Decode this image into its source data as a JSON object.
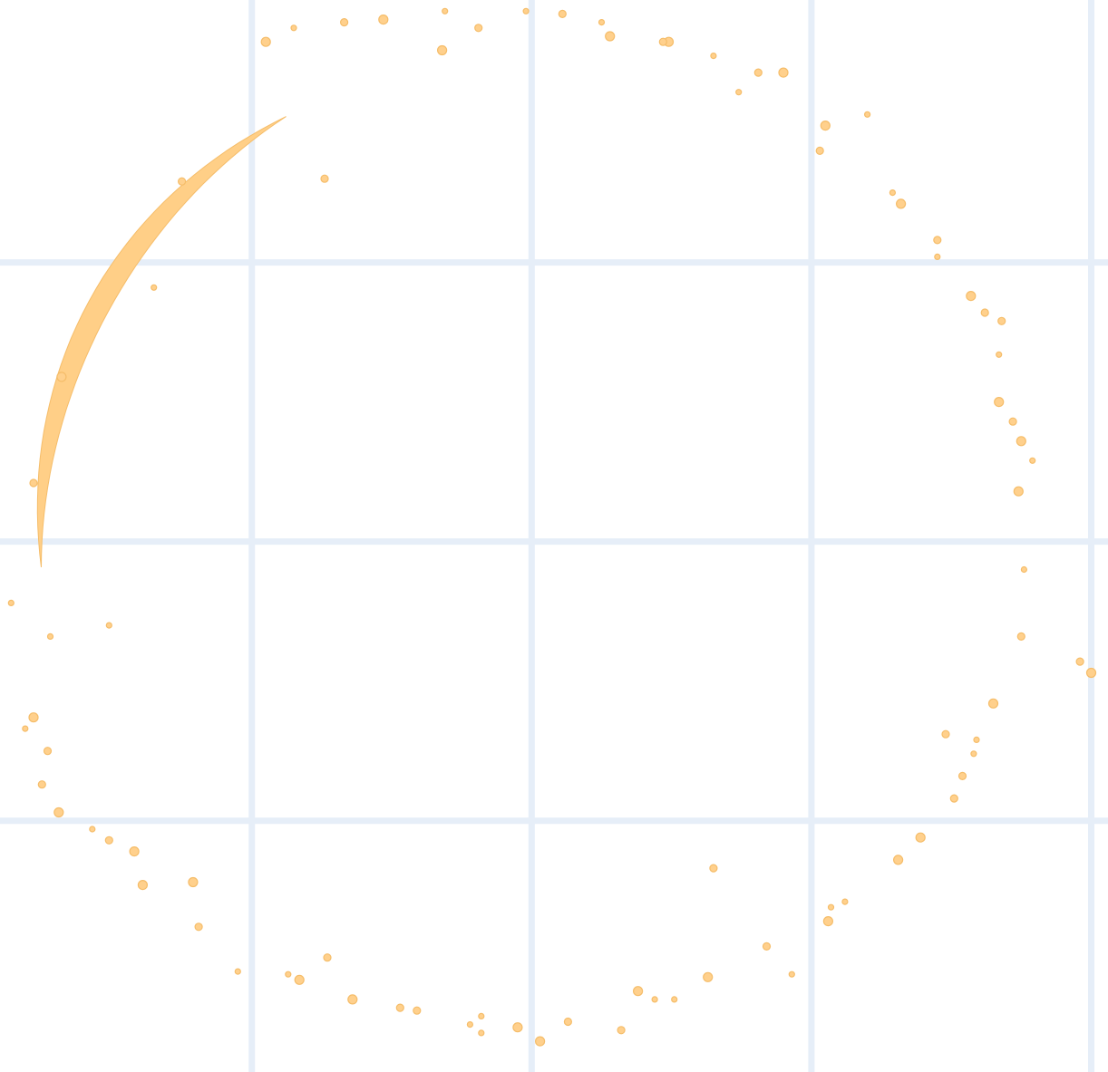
{
  "colors": {
    "background": "#ffffff",
    "grid": "#e6eef8",
    "point_fill": "#ffd08c",
    "point_stroke": "#f5bd6a",
    "arc_fill": "#ffcf87"
  },
  "chart_data": {
    "type": "scatter",
    "title": "",
    "xlabel": "",
    "ylabel": "",
    "xlim": [
      -1.9,
      2.06
    ],
    "ylim": [
      -1.9,
      1.94
    ],
    "xticks": [
      -1,
      0,
      1,
      2
    ],
    "yticks": [
      -2,
      -1,
      0,
      1
    ],
    "grid": true,
    "legend": "none",
    "shape": "ring",
    "series": [
      {
        "x": [
          -0.02,
          0.11,
          0.49,
          0.65,
          0.81,
          1.05,
          1.29,
          1.45,
          1.57,
          1.67,
          1.72,
          1.74,
          1.76,
          1.75,
          1.65,
          1.58,
          1.51,
          1.31,
          1.07,
          0.84,
          0.63,
          0.44,
          0.13,
          -0.05,
          -0.22,
          -0.47,
          -0.64,
          -0.87,
          -1.19,
          -1.39,
          -1.57,
          -1.75,
          -1.78,
          -1.72,
          -1.25,
          -0.95,
          -0.85,
          -0.67,
          -0.53,
          -0.31,
          -0.19,
          0.28,
          0.74,
          1.03,
          1.32,
          1.45,
          1.68,
          1.75,
          1.59,
          1.54,
          1.39,
          1.12,
          0.32,
          0.03,
          -0.18,
          -0.41,
          -0.83,
          -1.05,
          -1.51,
          -1.69,
          -1.86,
          -1.78,
          -1.68,
          -1.35,
          -0.74,
          -0.32,
          0.25,
          0.47,
          0.9,
          1.2,
          1.62,
          1.67,
          1.79,
          1.48,
          1.06,
          0.51,
          -0.73,
          -1.42,
          -1.81,
          1.96,
          2.0,
          0.93,
          0.65,
          0.38,
          -0.18,
          -1.73,
          -1.21,
          -1.51
        ],
        "y": [
          1.9,
          1.89,
          1.79,
          1.74,
          1.68,
          1.49,
          1.25,
          1.08,
          0.88,
          0.67,
          0.43,
          0.18,
          -0.1,
          -0.34,
          -0.58,
          -0.76,
          -0.92,
          -1.14,
          -1.31,
          -1.45,
          -1.56,
          -1.64,
          -1.72,
          -1.74,
          -1.73,
          -1.67,
          -1.64,
          -1.55,
          -1.38,
          -1.23,
          -1.03,
          -0.87,
          -0.63,
          -0.34,
          1.29,
          1.79,
          1.84,
          1.86,
          1.87,
          1.9,
          1.84,
          1.81,
          1.61,
          1.4,
          1.21,
          1.02,
          0.79,
          0.36,
          -0.71,
          -0.84,
          -1.06,
          -1.29,
          -1.75,
          -1.79,
          -1.7,
          -1.68,
          -1.57,
          -1.54,
          -1.07,
          -0.97,
          -0.22,
          0.21,
          0.59,
          0.91,
          1.3,
          1.76,
          1.86,
          1.79,
          1.68,
          1.53,
          0.82,
          0.5,
          0.29,
          -0.69,
          -1.36,
          -1.64,
          -1.49,
          -1.11,
          -0.67,
          -0.43,
          -0.47,
          -1.55,
          -1.17,
          -1.61,
          -1.76,
          -0.75,
          -1.22,
          -0.3
        ]
      }
    ]
  }
}
